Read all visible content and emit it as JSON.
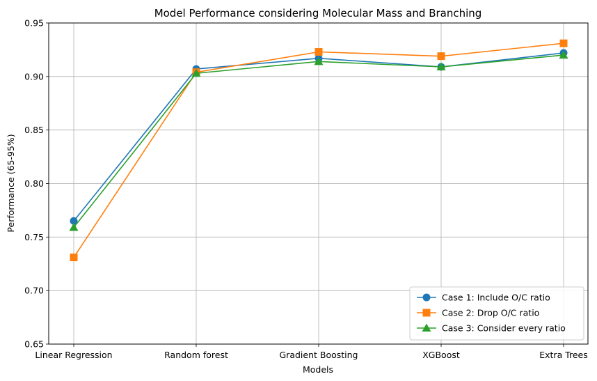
{
  "chart_data": {
    "type": "line",
    "title": "Model Performance considering Molecular Mass and Branching",
    "xlabel": "Models",
    "ylabel": "Performance (65-95%)",
    "categories": [
      "Linear Regression",
      "Random forest",
      "Gradient Boosting",
      "XGBoost",
      "Extra Trees"
    ],
    "ylim": [
      0.65,
      0.95
    ],
    "yticks": [
      "0.65",
      "0.70",
      "0.75",
      "0.80",
      "0.85",
      "0.90",
      "0.95"
    ],
    "grid": true,
    "legend_position": "bottom-right",
    "series": [
      {
        "name": "Case 1: Include O/C ratio",
        "values": [
          0.765,
          0.907,
          0.917,
          0.909,
          0.922
        ],
        "color": "#1f77b4",
        "marker": "circle"
      },
      {
        "name": "Case 2: Drop O/C ratio",
        "values": [
          0.731,
          0.904,
          0.923,
          0.919,
          0.931
        ],
        "color": "#ff7f0e",
        "marker": "square"
      },
      {
        "name": "Case 3: Consider every ratio",
        "values": [
          0.759,
          0.903,
          0.914,
          0.909,
          0.92
        ],
        "color": "#2ca02c",
        "marker": "triangle"
      }
    ]
  }
}
